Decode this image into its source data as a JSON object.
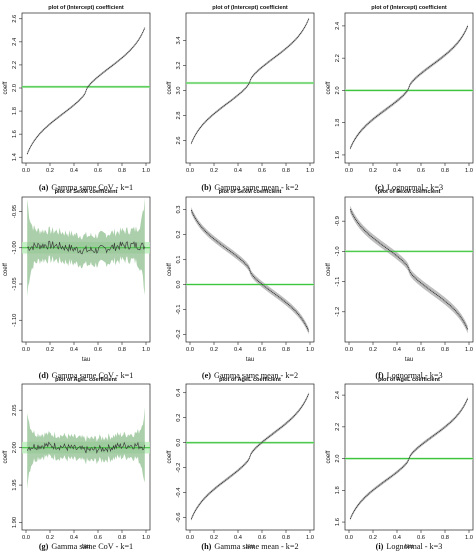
{
  "colors": {
    "curve": "#333333",
    "band": "#a8a8a8",
    "ref_line": "#3ec43e",
    "ref_band": "#b8ecb8",
    "noisy_band": "#8fbf8f"
  },
  "chart_data": [
    {
      "type": "line",
      "panel": "a",
      "caption_label": "(a)",
      "caption_text": "Gamma same CoV - k=1",
      "title": "plot of (Intercept)  coefficient",
      "xlabel": "",
      "ylabel": "coeff",
      "xlim": [
        0,
        1
      ],
      "ylim": [
        1.35,
        2.65
      ],
      "xticks": [
        0.0,
        0.2,
        0.4,
        0.6,
        0.8,
        1.0
      ],
      "xticklabels": [
        "0.0",
        "0.2",
        "0.4",
        "0.6",
        "0.8",
        "1.0"
      ],
      "yticks": [
        1.4,
        1.6,
        1.8,
        2.0,
        2.2,
        2.4,
        2.6
      ],
      "yticklabels": [
        "1.4",
        "1.6",
        "1.8",
        "2.0",
        "2.2",
        "2.4",
        "2.6"
      ],
      "ref_value": 2.01,
      "shape": "s",
      "start": 1.4,
      "end": 2.55,
      "noise": 0,
      "band": 0.01
    },
    {
      "type": "line",
      "panel": "b",
      "caption_label": "(b)",
      "caption_text": "Gamma same mean - k=2",
      "title": "plot of (Intercept)  coefficient",
      "xlabel": "",
      "ylabel": "coeff",
      "xlim": [
        0,
        1
      ],
      "ylim": [
        2.42,
        3.62
      ],
      "xticks": [
        0.0,
        0.2,
        0.4,
        0.6,
        0.8,
        1.0
      ],
      "xticklabels": [
        "0.0",
        "0.2",
        "0.4",
        "0.6",
        "0.8",
        "1.0"
      ],
      "yticks": [
        2.6,
        2.8,
        3.0,
        3.2,
        3.4
      ],
      "yticklabels": [
        "2.6",
        "2.8",
        "3.0",
        "3.2",
        "3.4"
      ],
      "ref_value": 3.06,
      "shape": "s",
      "start": 2.55,
      "end": 3.6,
      "noise": 0,
      "band": 0.01
    },
    {
      "type": "line",
      "panel": "c",
      "caption_label": "(c)",
      "caption_text": "Lognormal - k=3",
      "title": "plot of (Intercept)  coefficient",
      "xlabel": "",
      "ylabel": "coeff",
      "xlim": [
        0,
        1
      ],
      "ylim": [
        1.55,
        2.48
      ],
      "xticks": [
        0.0,
        0.2,
        0.4,
        0.6,
        0.8,
        1.0
      ],
      "xticklabels": [
        "0.0",
        "0.2",
        "0.4",
        "0.6",
        "0.8",
        "1.0"
      ],
      "yticks": [
        1.6,
        1.8,
        2.0,
        2.2,
        2.4
      ],
      "yticklabels": [
        "1.6",
        "1.8",
        "2.0",
        "2.2",
        "2.4"
      ],
      "ref_value": 2.0,
      "shape": "s",
      "start": 1.62,
      "end": 2.42,
      "noise": 0,
      "band": 0.01
    },
    {
      "type": "line",
      "panel": "d",
      "caption_label": "(d)",
      "caption_text": "Gamma same CoV - k=1",
      "title": "plot of SexM  coefficient",
      "xlabel": "tau",
      "ylabel": "coeff",
      "xlim": [
        0,
        1
      ],
      "ylim": [
        -1.13,
        -0.93
      ],
      "xticks": [
        0.0,
        0.2,
        0.4,
        0.6,
        0.8,
        1.0
      ],
      "xticklabels": [
        "0.0",
        "0.2",
        "0.4",
        "0.6",
        "0.8",
        "1.0"
      ],
      "yticks": [
        -1.1,
        -1.05,
        -1.0,
        -0.95
      ],
      "yticklabels": [
        "-1.10",
        "-1.05",
        "-1.00",
        "-0.95"
      ],
      "ref_value": -1.0,
      "shape": "flat",
      "start": -1.0,
      "end": -1.0,
      "noise": 0.006,
      "band": 0.02
    },
    {
      "type": "line",
      "panel": "e",
      "caption_label": "(e)",
      "caption_text": "Gamma same mean - k=2",
      "title": "plot of SexM  coefficient",
      "xlabel": "tau",
      "ylabel": "coeff",
      "xlim": [
        0,
        1
      ],
      "ylim": [
        -0.23,
        0.35
      ],
      "xticks": [
        0.0,
        0.2,
        0.4,
        0.6,
        0.8,
        1.0
      ],
      "xticklabels": [
        "0.0",
        "0.2",
        "0.4",
        "0.6",
        "0.8",
        "1.0"
      ],
      "yticks": [
        -0.2,
        -0.1,
        0.0,
        0.1,
        0.2,
        0.3
      ],
      "yticklabels": [
        "-0.2",
        "-0.1",
        "0.0",
        "0.1",
        "0.2",
        "0.3"
      ],
      "ref_value": 0.0,
      "shape": "s",
      "start": 0.31,
      "end": -0.2,
      "noise": 0,
      "band": 0.012
    },
    {
      "type": "line",
      "panel": "f",
      "caption_label": "(f)",
      "caption_text": "Lognormal - k=3",
      "title": "plot of SexM  coefficient",
      "xlabel": "tau",
      "ylabel": "coeff",
      "xlim": [
        0,
        1
      ],
      "ylim": [
        -1.3,
        -0.82
      ],
      "xticks": [
        0.0,
        0.2,
        0.4,
        0.6,
        0.8,
        1.0
      ],
      "xticklabels": [
        "0.0",
        "0.2",
        "0.4",
        "0.6",
        "0.8",
        "1.0"
      ],
      "yticks": [
        -1.2,
        -1.1,
        -1.0,
        -0.9
      ],
      "yticklabels": [
        "-1.2",
        "-1.1",
        "-1.0",
        "-0.9"
      ],
      "ref_value": -1.0,
      "shape": "s",
      "start": -0.85,
      "end": -1.27,
      "noise": 0,
      "band": 0.012
    },
    {
      "type": "line",
      "panel": "g",
      "caption_label": "(g)",
      "caption_text": "Gamma same CoV - k=1",
      "title": "plot of AgeL  coefficient",
      "xlabel": "tau",
      "ylabel": "coeff",
      "xlim": [
        0,
        1
      ],
      "ylim": [
        1.89,
        2.085
      ],
      "xticks": [
        0.0,
        0.2,
        0.4,
        0.6,
        0.8,
        1.0
      ],
      "xticklabels": [
        "0.0",
        "0.2",
        "0.4",
        "0.6",
        "0.8",
        "1.0"
      ],
      "yticks": [
        1.9,
        1.95,
        2.0,
        2.05
      ],
      "yticklabels": [
        "1.90",
        "1.95",
        "2.00",
        "2.05"
      ],
      "ref_value": 2.0,
      "shape": "flat",
      "start": 2.0,
      "end": 2.0,
      "noise": 0.005,
      "band": 0.015
    },
    {
      "type": "line",
      "panel": "h",
      "caption_label": "(h)",
      "caption_text": "Gamma same mean - k=2",
      "title": "plot of AgeL  coefficient",
      "xlabel": "tau",
      "ylabel": "coeff",
      "xlim": [
        0,
        1
      ],
      "ylim": [
        -0.7,
        0.47
      ],
      "xticks": [
        0.0,
        0.2,
        0.4,
        0.6,
        0.8,
        1.0
      ],
      "xticklabels": [
        "0.0",
        "0.2",
        "0.4",
        "0.6",
        "0.8",
        "1.0"
      ],
      "yticks": [
        -0.6,
        -0.4,
        -0.2,
        0.0,
        0.2,
        0.4
      ],
      "yticklabels": [
        "-0.6",
        "-0.4",
        "-0.2",
        "0.0",
        "0.2",
        "0.4"
      ],
      "ref_value": 0.0,
      "shape": "s",
      "start": -0.64,
      "end": 0.42,
      "noise": 0,
      "band": 0.012
    },
    {
      "type": "line",
      "panel": "i",
      "caption_label": "(i)",
      "caption_text": "Lognormal - k=3",
      "title": "plot of AgeL  coefficient",
      "xlabel": "tau",
      "ylabel": "coeff",
      "xlim": [
        0,
        1
      ],
      "ylim": [
        1.55,
        2.47
      ],
      "xticks": [
        0.0,
        0.2,
        0.4,
        0.6,
        0.8,
        1.0
      ],
      "xticklabels": [
        "0.0",
        "0.2",
        "0.4",
        "0.6",
        "0.8",
        "1.0"
      ],
      "yticks": [
        1.6,
        1.8,
        2.0,
        2.2,
        2.4
      ],
      "yticklabels": [
        "1.6",
        "1.8",
        "2.0",
        "2.2",
        "2.4"
      ],
      "ref_value": 2.0,
      "shape": "s",
      "start": 1.6,
      "end": 2.4,
      "noise": 0,
      "band": 0.01
    }
  ]
}
